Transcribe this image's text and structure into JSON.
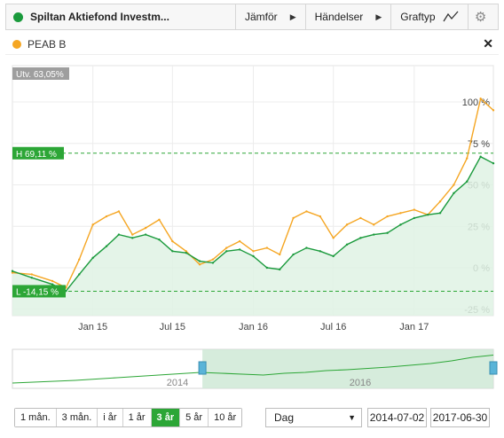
{
  "header": {
    "title": "Spiltan Aktiefond Investm...",
    "compare_label": "Jämför",
    "events_label": "Händelser",
    "graphtype_label": "Graftyp"
  },
  "colors": {
    "fund": "#1a9a3c",
    "peab": "#f5a623",
    "active": "#2ca636"
  },
  "legend": {
    "series_name": "PEAB B"
  },
  "chart_data": {
    "type": "line",
    "title": "",
    "xlabel": "",
    "ylabel": "",
    "x_ticks": [
      "Jan 15",
      "Jul 15",
      "Jan 16",
      "Jul 16",
      "Jan 17"
    ],
    "y_ticks": [
      "100 %",
      "75 %",
      "50 %",
      "25 %",
      "0 %",
      "-25 %"
    ],
    "ylim": [
      -30,
      110
    ],
    "grid": true,
    "badges": {
      "change": "Utv. 63,05%",
      "high": "H 69,11 %",
      "low": "L -14,15 %"
    },
    "high_value": 69.11,
    "low_value": -14.15,
    "x_dates": [
      "2014-07-02",
      "2014-08-15",
      "2014-10-01",
      "2014-11-01",
      "2014-12-01",
      "2015-01-01",
      "2015-02-01",
      "2015-03-01",
      "2015-04-01",
      "2015-05-01",
      "2015-06-01",
      "2015-07-01",
      "2015-08-01",
      "2015-09-01",
      "2015-10-01",
      "2015-11-01",
      "2015-12-01",
      "2016-01-01",
      "2016-02-01",
      "2016-03-01",
      "2016-04-01",
      "2016-05-01",
      "2016-06-01",
      "2016-07-01",
      "2016-08-01",
      "2016-09-01",
      "2016-10-01",
      "2016-11-01",
      "2016-12-01",
      "2017-01-01",
      "2017-02-01",
      "2017-03-01",
      "2017-04-01",
      "2017-05-01",
      "2017-06-01",
      "2017-06-30"
    ],
    "series": [
      {
        "name": "Spiltan Aktiefond Investm...",
        "values": [
          -2,
          -6,
          -10,
          -14,
          -4,
          6,
          13,
          20,
          18,
          20,
          17,
          10,
          9,
          4,
          3,
          10,
          11,
          7,
          0,
          -1,
          8,
          12,
          10,
          7,
          14,
          18,
          20,
          21,
          26,
          30,
          32,
          33,
          45,
          52,
          67,
          63
        ]
      },
      {
        "name": "PEAB B",
        "values": [
          -3,
          -4,
          -8,
          -12,
          5,
          26,
          31,
          34,
          20,
          24,
          29,
          16,
          10,
          2,
          5,
          12,
          16,
          10,
          12,
          8,
          30,
          34,
          31,
          18,
          26,
          30,
          26,
          31,
          33,
          35,
          32,
          40,
          50,
          66,
          102,
          95
        ]
      }
    ]
  },
  "navigator": {
    "labels": [
      "2014",
      "2016"
    ],
    "series": [
      0,
      2,
      4,
      6,
      9,
      12,
      15,
      18,
      21,
      24,
      22,
      20,
      18,
      22,
      24,
      28,
      30,
      33,
      36,
      40,
      44,
      50,
      58,
      63
    ]
  },
  "range_buttons": [
    "1 mån.",
    "3 mån.",
    "i år",
    "1 år",
    "3 år",
    "5 år",
    "10 år"
  ],
  "active_range": "3 år",
  "interval": {
    "value": "Dag"
  },
  "dates": {
    "from": "2014-07-02",
    "to": "2017-06-30"
  }
}
